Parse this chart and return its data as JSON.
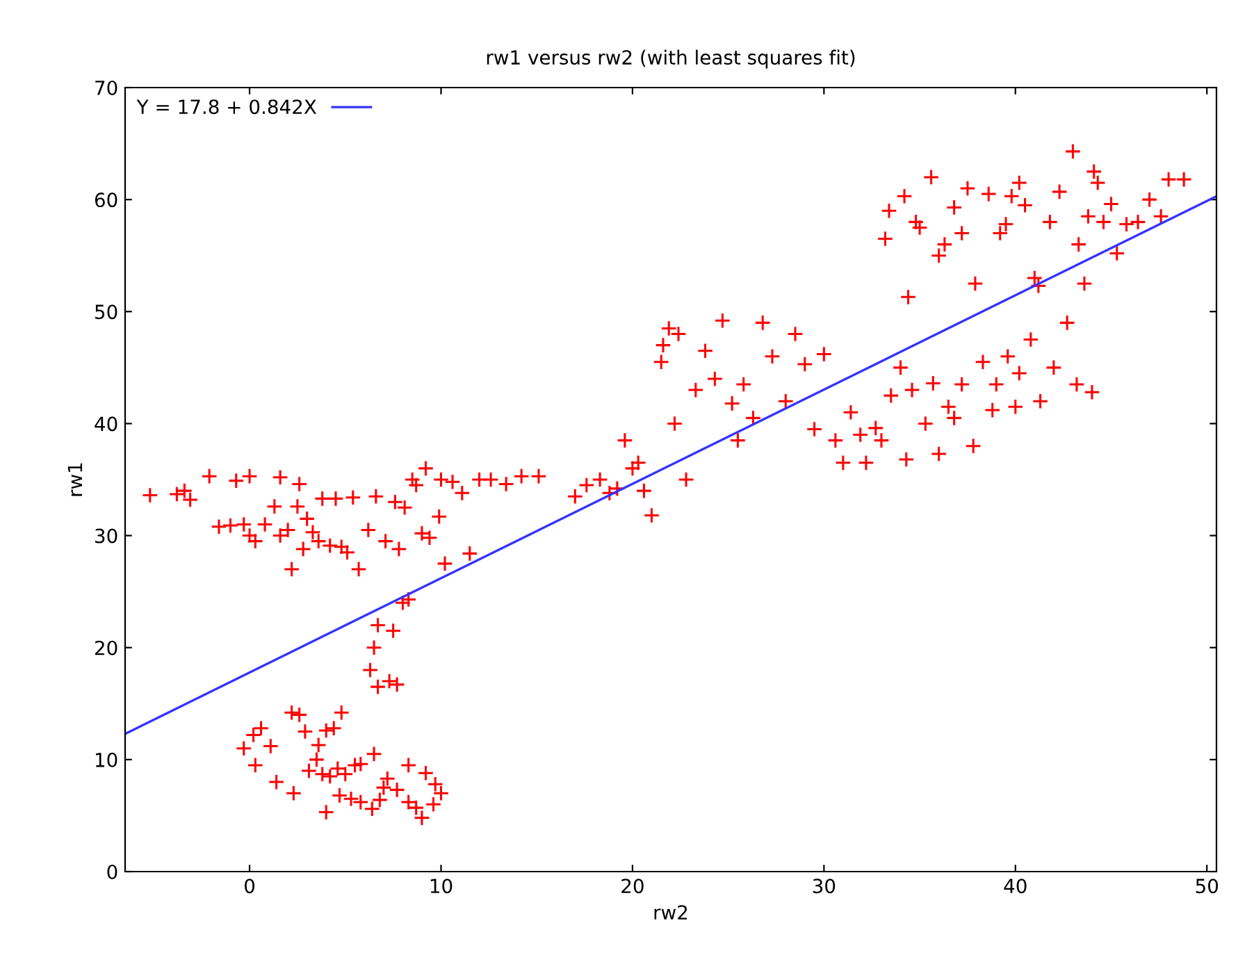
{
  "chart_data": {
    "type": "scatter",
    "title": "rw1 versus rw2 (with least squares fit)",
    "xlabel": "rw2",
    "ylabel": "rw1",
    "xlim": [
      -6.5,
      50.5
    ],
    "xticks": [
      0,
      10,
      20,
      30,
      40,
      50
    ],
    "ylim": [
      0,
      70
    ],
    "yticks": [
      0,
      10,
      20,
      30,
      40,
      50,
      60,
      70
    ],
    "grid": false,
    "legend": "top left",
    "marker": "cross",
    "series": [
      {
        "color": "#ff0000",
        "x": [
          -5.2,
          -3.8,
          -3.4,
          -3.1,
          -2.1,
          -1.6,
          -1.0,
          -0.7,
          -0.3,
          0.0,
          0.0,
          0.3,
          0.8,
          1.3,
          1.6,
          1.6,
          2.0,
          2.2,
          2.5,
          2.8,
          2.6,
          3.0,
          3.3,
          3.6,
          3.8,
          4.2,
          4.5,
          4.8,
          5.1,
          5.4,
          5.7,
          6.2,
          6.6,
          7.1,
          7.6,
          7.8,
          8.1,
          8.5,
          8.7,
          9.0,
          9.2,
          9.4,
          9.9,
          10.0,
          10.2,
          10.6,
          11.1,
          11.5,
          12.0,
          12.6,
          13.4,
          14.2,
          15.1,
          8.3,
          8.0,
          7.5,
          6.7,
          6.5,
          6.3,
          6.7,
          7.3,
          7.7,
          -0.3,
          0.2,
          0.6,
          0.3,
          1.1,
          1.4,
          2.2,
          2.6,
          2.9,
          3.5,
          3.6,
          4.0,
          4.4,
          4.8,
          3.1,
          3.8,
          4.2,
          4.6,
          5.0,
          5.5,
          5.8,
          6.5,
          7.2,
          8.3,
          9.2,
          9.7,
          10.0,
          2.3,
          4.0,
          5.3,
          5.8,
          6.4,
          7.0,
          7.7,
          8.3,
          8.7,
          9.0,
          9.6,
          4.7,
          6.8,
          17.0,
          17.6,
          18.3,
          18.8,
          19.2,
          19.6,
          20.0,
          20.3,
          20.6,
          21.0,
          21.5,
          21.6,
          21.9,
          22.4,
          22.2,
          22.8,
          23.3,
          23.8,
          24.3,
          24.7,
          25.2,
          25.5,
          25.8,
          26.3,
          26.8,
          27.3,
          28.0,
          28.5,
          29.0,
          29.5,
          30.0,
          30.6,
          31.0,
          31.4,
          31.9,
          32.2,
          33.0,
          33.5,
          34.0,
          34.6,
          35.3,
          36.0,
          36.5,
          37.2,
          37.8,
          38.3,
          39.0,
          39.6,
          40.2,
          40.8,
          41.3,
          42.0,
          42.7,
          43.2,
          44.0,
          36.8,
          35.7,
          38.8,
          40.0,
          32.7,
          34.3,
          33.2,
          33.4,
          34.2,
          34.4,
          34.8,
          35.6,
          36.3,
          36.8,
          37.2,
          37.5,
          37.9,
          38.6,
          39.2,
          39.8,
          40.2,
          40.5,
          41.2,
          41.8,
          42.3,
          43.0,
          43.3,
          43.8,
          44.1,
          44.6,
          45.0,
          45.3,
          45.8,
          46.4,
          47.0,
          47.6,
          48.0,
          48.8,
          43.6,
          44.3,
          36.0,
          41.0,
          35.0,
          39.5
        ],
        "values": [
          33.6,
          33.7,
          34.0,
          33.2,
          35.3,
          30.8,
          30.9,
          34.9,
          31.0,
          35.3,
          30.0,
          29.5,
          31.0,
          32.6,
          30.0,
          35.2,
          30.5,
          27.0,
          32.6,
          28.8,
          34.6,
          31.5,
          30.3,
          29.5,
          33.3,
          29.1,
          33.3,
          29.0,
          28.5,
          33.4,
          27.0,
          30.5,
          33.5,
          29.5,
          33.0,
          28.8,
          32.5,
          35.0,
          34.5,
          30.2,
          36.0,
          29.8,
          31.7,
          35.0,
          27.5,
          34.8,
          33.8,
          28.4,
          35.0,
          35.0,
          34.6,
          35.3,
          35.3,
          24.3,
          24.0,
          21.5,
          22.0,
          20.0,
          18.0,
          16.5,
          17.0,
          16.7,
          11.0,
          12.2,
          12.8,
          9.5,
          11.2,
          8.0,
          14.2,
          14.0,
          12.5,
          10.0,
          11.3,
          12.6,
          12.8,
          14.2,
          9.0,
          8.7,
          8.5,
          9.2,
          8.7,
          9.5,
          9.6,
          10.5,
          8.3,
          9.5,
          8.8,
          7.8,
          7.0,
          7.0,
          5.3,
          6.5,
          6.2,
          5.6,
          7.5,
          7.3,
          6.2,
          5.7,
          4.8,
          6.0,
          6.8,
          6.4,
          33.5,
          34.5,
          35.0,
          33.8,
          34.2,
          38.5,
          36.0,
          36.5,
          34.0,
          31.8,
          45.5,
          47.0,
          48.5,
          48.0,
          40.0,
          35.0,
          43.0,
          46.5,
          44.0,
          49.2,
          41.8,
          38.5,
          43.5,
          40.5,
          49.0,
          46.0,
          42.0,
          48.0,
          45.3,
          39.5,
          46.2,
          38.5,
          36.5,
          41.0,
          39.0,
          36.5,
          38.5,
          42.5,
          45.0,
          43.0,
          40.0,
          37.3,
          41.5,
          43.5,
          38.0,
          45.5,
          43.5,
          46.0,
          44.5,
          47.5,
          42.0,
          45.0,
          49.0,
          43.5,
          42.8,
          40.5,
          43.6,
          41.2,
          41.5,
          39.6,
          36.8,
          56.5,
          59.0,
          60.3,
          51.3,
          58.0,
          62.0,
          56.0,
          59.3,
          57.0,
          61.0,
          52.5,
          60.5,
          57.0,
          60.3,
          61.5,
          59.5,
          52.3,
          58.0,
          60.7,
          64.3,
          56.0,
          58.5,
          62.5,
          58.0,
          59.6,
          55.2,
          57.8,
          58.0,
          60.0,
          58.5,
          61.8,
          61.8,
          52.5,
          61.5,
          55.0,
          53.0,
          57.5,
          57.8
        ]
      },
      {
        "type": "line",
        "name": "Y = 17.8 + 0.842X",
        "color": "#3333ff",
        "marker": "none",
        "x": [
          -6.5,
          50.5
        ],
        "values": [
          12.3,
          60.3
        ]
      }
    ]
  }
}
